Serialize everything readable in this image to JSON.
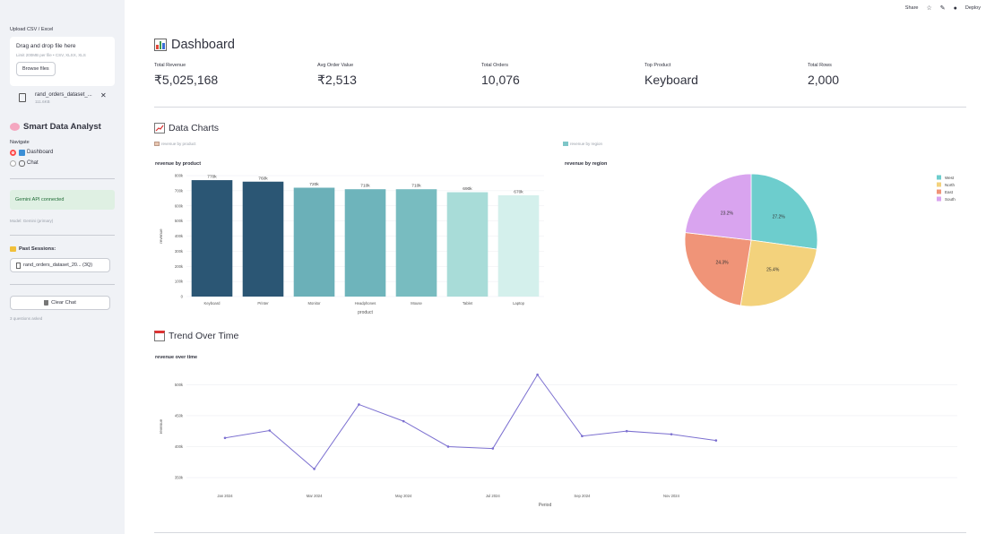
{
  "topbar": {
    "share": "Share",
    "deploy": "Deploy"
  },
  "sidebar": {
    "upload_label": "Upload CSV / Excel",
    "dropzone_title": "Drag and drop file here",
    "dropzone_sub": "Limit 200MB per file • CSV, XLSX, XLS",
    "browse": "Browse files",
    "file_name": "rand_orders_dataset_...",
    "file_size": "111.6KB",
    "app_title": "Smart Data Analyst",
    "navigate": "Navigate",
    "nav_dashboard": "Dashboard",
    "nav_chat": "Chat",
    "api_status": "Gemini API connected",
    "model": "Model: Gemini (primary)",
    "past_sessions": "Past Sessions:",
    "session_item": "rand_orders_dataset_20... (3Q)",
    "clear_chat": "Clear Chat",
    "questions": "3 questions asked"
  },
  "dashboard": {
    "title": "Dashboard",
    "metrics": [
      {
        "label": "Total Revenue",
        "value": "₹5,025,168"
      },
      {
        "label": "Avg Order Value",
        "value": "₹2,513"
      },
      {
        "label": "Total Orders",
        "value": "10,076"
      },
      {
        "label": "Top Product",
        "value": "Keyboard"
      },
      {
        "label": "Total Rows",
        "value": "2,000"
      }
    ],
    "charts_title": "Data Charts",
    "tab_product": "revenue by product",
    "tab_region": "revenue by region",
    "trend_title": "Trend Over Time"
  },
  "chart_data": [
    {
      "type": "bar",
      "title": "revenue by product",
      "xlabel": "product",
      "ylabel": "revenue",
      "categories": [
        "Keyboard",
        "Printer",
        "Monitor",
        "Headphones",
        "Mouse",
        "Tablet",
        "Laptop"
      ],
      "values": [
        770000,
        760000,
        720000,
        710000,
        710000,
        690000,
        670000
      ],
      "data_labels": [
        "770k",
        "760k",
        "720k",
        "710k",
        "710k",
        "690k",
        "670k"
      ],
      "colors": [
        "#2b5674",
        "#2b5674",
        "#6bb0b8",
        "#6eb4bb",
        "#78bcc0",
        "#a8dcd8",
        "#d4f0ec"
      ],
      "yticks": [
        "0",
        "100k",
        "200k",
        "300k",
        "400k",
        "500k",
        "600k",
        "700k",
        "800k"
      ],
      "ylim": [
        0,
        800000
      ]
    },
    {
      "type": "pie",
      "title": "revenue by region",
      "labels": [
        "West",
        "North",
        "East",
        "South"
      ],
      "values": [
        27.2,
        25.4,
        24.3,
        23.2
      ],
      "data_labels": [
        "27.2%",
        "25.4%",
        "24.3%",
        "23.2%"
      ],
      "colors": [
        "#6dcdcd",
        "#f3d27c",
        "#f09478",
        "#d9a4ef"
      ],
      "legend": "top-right"
    },
    {
      "type": "line",
      "title": "revenue over time",
      "xlabel": "Period",
      "ylabel": "revenue",
      "x": [
        "Jan 2024",
        "Feb 2024",
        "Mar 2024",
        "Apr 2024",
        "May 2024",
        "Jun 2024",
        "Jul 2024",
        "Aug 2024",
        "Sep 2024",
        "Oct 2024",
        "Nov 2024",
        "Dec 2024"
      ],
      "values": [
        414000,
        426000,
        364000,
        468000,
        441000,
        400000,
        397000,
        516000,
        417000,
        425000,
        420000,
        410000
      ],
      "xticks": [
        "Jan 2024",
        "Mar 2024",
        "May 2024",
        "Jul 2024",
        "Sep 2024",
        "Nov 2024"
      ],
      "yticks": [
        "350k",
        "400k",
        "450k",
        "500k"
      ],
      "color": "#7b6fd0"
    }
  ]
}
